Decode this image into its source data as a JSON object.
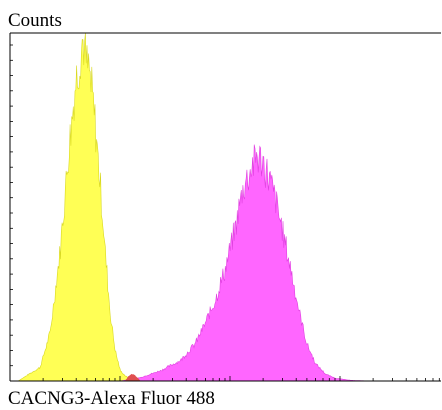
{
  "chart_data": {
    "type": "area",
    "title": "",
    "ylabel": "Counts",
    "xlabel": "CACNG3-Alexa Fluor 488",
    "xlim": [
      0,
      430
    ],
    "ylim": [
      0,
      1.0
    ],
    "grid": false,
    "legend": "none",
    "series": [
      {
        "color": "#ffff55",
        "edge_color": "#d8d820",
        "x": [
          8,
          30,
          40,
          50,
          55,
          60,
          65,
          70,
          73,
          76,
          79,
          82,
          86,
          90,
          95,
          100,
          105,
          110,
          115,
          120,
          125,
          130
        ],
        "values": [
          0.0,
          0.04,
          0.14,
          0.38,
          0.55,
          0.72,
          0.86,
          0.96,
          1.0,
          0.93,
          0.9,
          0.84,
          0.72,
          0.58,
          0.38,
          0.2,
          0.09,
          0.03,
          0.015,
          0.005,
          0.002,
          0.0
        ]
      },
      {
        "color": "#ff66ff",
        "edge_color": "#e040e0",
        "x": [
          110,
          130,
          150,
          170,
          185,
          195,
          205,
          215,
          225,
          232,
          240,
          246,
          252,
          258,
          265,
          272,
          280,
          288,
          296,
          305,
          315,
          325,
          340,
          360
        ],
        "values": [
          0.0,
          0.01,
          0.03,
          0.06,
          0.11,
          0.17,
          0.24,
          0.33,
          0.45,
          0.56,
          0.62,
          0.66,
          0.64,
          0.6,
          0.53,
          0.44,
          0.33,
          0.21,
          0.11,
          0.05,
          0.02,
          0.008,
          0.002,
          0.0
        ]
      },
      {
        "color": "#e05050",
        "edge_color": "#e05050",
        "x": [
          115,
          118,
          122,
          126,
          130
        ],
        "values": [
          0.0,
          0.012,
          0.02,
          0.012,
          0.0
        ]
      }
    ]
  }
}
